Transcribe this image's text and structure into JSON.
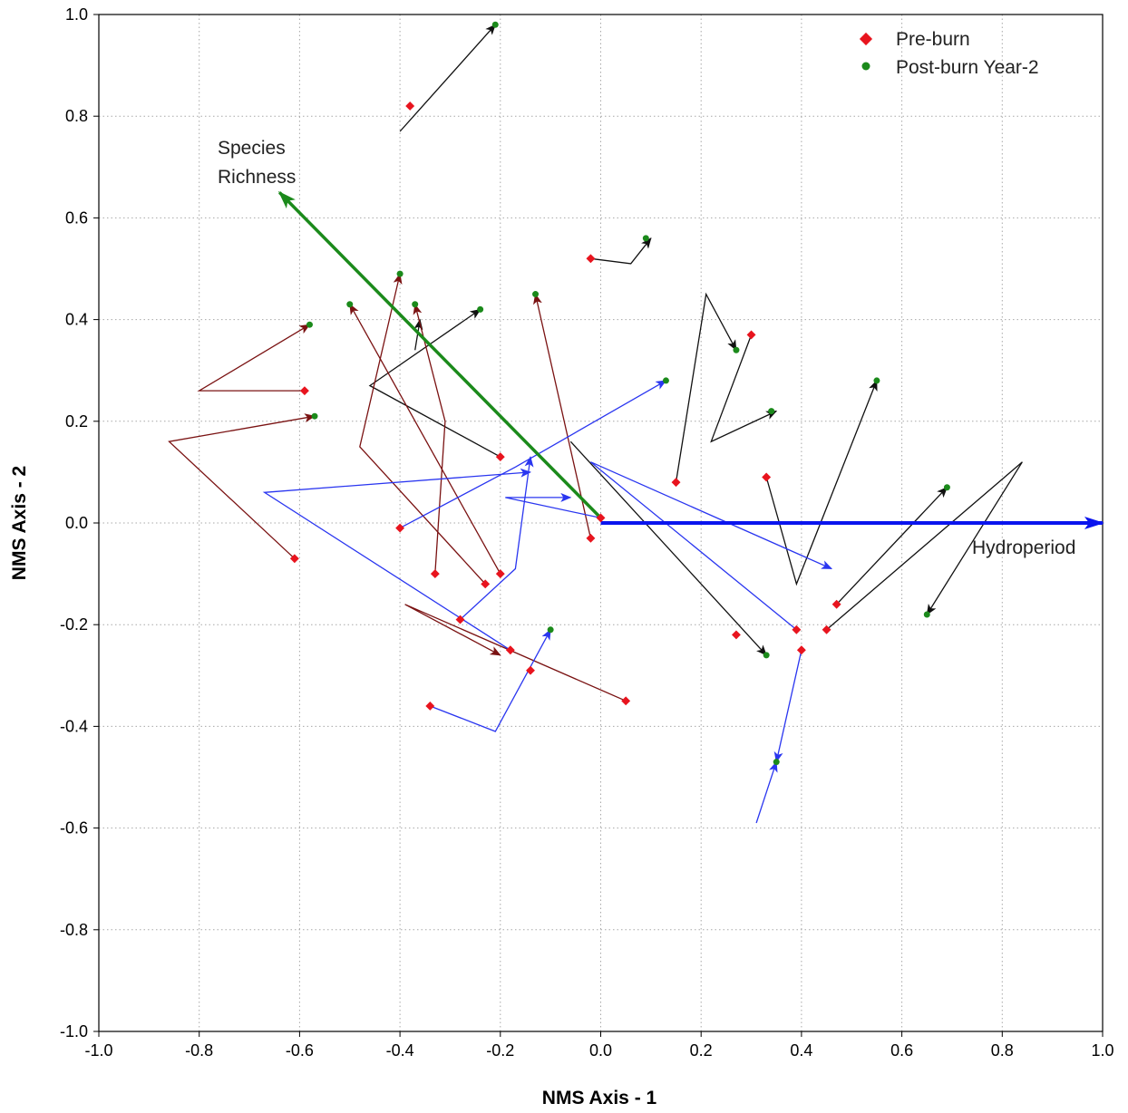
{
  "chart_data": {
    "type": "scatter",
    "title": "",
    "xlabel": "NMS Axis - 1",
    "ylabel": "NMS Axis - 2",
    "xlim": [
      -1.0,
      1.0
    ],
    "ylim": [
      -1.0,
      1.0
    ],
    "xticks": [
      "-1.0",
      "-0.8",
      "-0.6",
      "-0.4",
      "-0.2",
      "0.0",
      "0.2",
      "0.4",
      "0.6",
      "0.8",
      "1.0"
    ],
    "yticks": [
      "1.0",
      "0.8",
      "0.6",
      "0.4",
      "0.2",
      "0.0",
      "-0.2",
      "-0.4",
      "-0.6",
      "-0.8",
      "-1.0"
    ],
    "grid": true,
    "legend_position": "top-right",
    "series": [
      {
        "name": "Pre-burn",
        "color": "#e8141e",
        "points": [
          [
            -0.38,
            0.82
          ],
          [
            -0.02,
            0.52
          ],
          [
            0.3,
            0.37
          ],
          [
            -0.59,
            0.26
          ],
          [
            -0.2,
            0.13
          ],
          [
            0.33,
            0.09
          ],
          [
            0.15,
            0.08
          ],
          [
            -0.4,
            -0.01
          ],
          [
            0.0,
            0.01
          ],
          [
            -0.02,
            -0.03
          ],
          [
            -0.61,
            -0.07
          ],
          [
            -0.33,
            -0.1
          ],
          [
            -0.2,
            -0.1
          ],
          [
            -0.23,
            -0.12
          ],
          [
            0.47,
            -0.16
          ],
          [
            -0.28,
            -0.19
          ],
          [
            0.45,
            -0.21
          ],
          [
            0.39,
            -0.21
          ],
          [
            0.27,
            -0.22
          ],
          [
            -0.18,
            -0.25
          ],
          [
            0.4,
            -0.25
          ],
          [
            -0.14,
            -0.29
          ],
          [
            0.05,
            -0.35
          ],
          [
            -0.34,
            -0.36
          ]
        ]
      },
      {
        "name": "Post-burn Year-2",
        "color": "#1b8a1b",
        "points": [
          [
            -0.21,
            0.98
          ],
          [
            0.09,
            0.56
          ],
          [
            -0.4,
            0.49
          ],
          [
            -0.13,
            0.45
          ],
          [
            -0.37,
            0.43
          ],
          [
            -0.5,
            0.43
          ],
          [
            -0.24,
            0.42
          ],
          [
            -0.58,
            0.39
          ],
          [
            0.27,
            0.34
          ],
          [
            0.13,
            0.28
          ],
          [
            0.55,
            0.28
          ],
          [
            0.34,
            0.22
          ],
          [
            -0.57,
            0.21
          ],
          [
            0.69,
            0.07
          ],
          [
            0.33,
            -0.26
          ],
          [
            -0.1,
            -0.21
          ],
          [
            0.65,
            -0.18
          ],
          [
            0.35,
            -0.47
          ]
        ]
      }
    ],
    "vectors": [
      {
        "label": "Species Richness",
        "from": [
          0.0,
          0.01
        ],
        "to": [
          -0.64,
          0.65
        ],
        "color": "#1b8a1b"
      },
      {
        "label": "Hydroperiod",
        "from": [
          0.0,
          0.0
        ],
        "to": [
          1.0,
          0.0
        ],
        "color": "#0a14ee"
      }
    ],
    "trajectories": {
      "black": [
        [
          [
            -0.4,
            0.77
          ],
          [
            -0.21,
            0.98
          ]
        ],
        [
          [
            -0.02,
            0.52
          ],
          [
            0.06,
            0.51
          ],
          [
            0.1,
            0.56
          ]
        ],
        [
          [
            -0.2,
            0.13
          ],
          [
            -0.46,
            0.27
          ],
          [
            -0.24,
            0.42
          ]
        ],
        [
          [
            0.3,
            0.37
          ],
          [
            0.22,
            0.16
          ],
          [
            0.35,
            0.22
          ]
        ],
        [
          [
            0.33,
            0.09
          ],
          [
            0.39,
            -0.12
          ],
          [
            0.55,
            0.28
          ]
        ],
        [
          [
            0.15,
            0.08
          ],
          [
            0.21,
            0.45
          ],
          [
            0.27,
            0.34
          ]
        ],
        [
          [
            0.45,
            -0.21
          ],
          [
            0.84,
            0.12
          ],
          [
            0.65,
            -0.18
          ]
        ],
        [
          [
            0.47,
            -0.16
          ],
          [
            0.69,
            0.07
          ]
        ],
        [
          [
            -0.06,
            0.16
          ],
          [
            0.33,
            -0.26
          ]
        ],
        [
          [
            -0.37,
            0.34
          ],
          [
            -0.36,
            0.4
          ]
        ]
      ],
      "darkred": [
        [
          [
            -0.59,
            0.26
          ],
          [
            -0.8,
            0.26
          ],
          [
            -0.58,
            0.39
          ]
        ],
        [
          [
            -0.61,
            -0.07
          ],
          [
            -0.86,
            0.16
          ],
          [
            -0.57,
            0.21
          ]
        ],
        [
          [
            -0.23,
            -0.12
          ],
          [
            -0.48,
            0.15
          ],
          [
            -0.4,
            0.49
          ]
        ],
        [
          [
            -0.2,
            -0.1
          ],
          [
            -0.5,
            0.43
          ]
        ],
        [
          [
            -0.33,
            -0.1
          ],
          [
            -0.31,
            0.2
          ],
          [
            -0.37,
            0.43
          ]
        ],
        [
          [
            -0.02,
            -0.03
          ],
          [
            -0.13,
            0.45
          ]
        ],
        [
          [
            0.05,
            -0.35
          ],
          [
            -0.39,
            -0.16
          ],
          [
            -0.2,
            -0.26
          ]
        ]
      ],
      "blue": [
        [
          [
            -0.4,
            -0.01
          ],
          [
            -0.17,
            0.11
          ],
          [
            0.13,
            0.28
          ]
        ],
        [
          [
            0.0,
            0.01
          ],
          [
            -0.19,
            0.05
          ],
          [
            -0.06,
            0.05
          ]
        ],
        [
          [
            -0.28,
            -0.19
          ],
          [
            -0.17,
            -0.09
          ],
          [
            -0.14,
            0.13
          ]
        ],
        [
          [
            -0.18,
            -0.25
          ],
          [
            -0.67,
            0.06
          ],
          [
            -0.14,
            0.1
          ]
        ],
        [
          [
            -0.34,
            -0.36
          ],
          [
            -0.21,
            -0.41
          ],
          [
            -0.1,
            -0.21
          ]
        ],
        [
          [
            0.31,
            -0.59
          ],
          [
            0.35,
            -0.47
          ]
        ],
        [
          [
            0.4,
            -0.25
          ],
          [
            0.35,
            -0.47
          ]
        ],
        [
          [
            0.39,
            -0.21
          ],
          [
            -0.02,
            0.12
          ],
          [
            0.46,
            -0.09
          ]
        ]
      ]
    },
    "trajectory_colors": {
      "black": "#111111",
      "darkred": "#7a1212",
      "blue": "#2a36f0"
    }
  }
}
